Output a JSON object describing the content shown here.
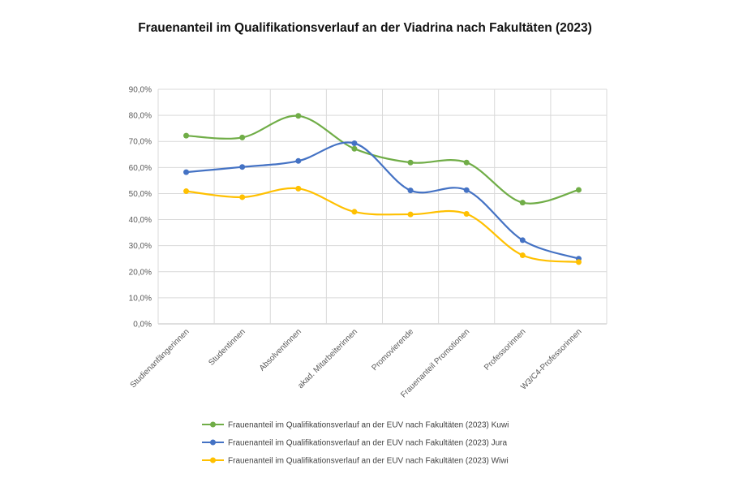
{
  "chart_data": {
    "type": "line",
    "title": "Frauenanteil im Qualifikationsverlauf an der Viadrina nach Fakultäten (2023)",
    "categories": [
      "Studienanfängerinnen",
      "Studentinnen",
      "Absolventinnen",
      "akad. Mitarbeiterinnen",
      "Promovierende",
      "Frauenanteil Promotionen",
      "Professorinnen",
      "W3/C4-Professorinnen"
    ],
    "yticks": [
      "0,0%",
      "10,0%",
      "20,0%",
      "30,0%",
      "40,0%",
      "50,0%",
      "60,0%",
      "70,0%",
      "80,0%",
      "90,0%"
    ],
    "ylim": [
      0,
      90
    ],
    "grid": true,
    "smooth": true,
    "legend_position": "bottom",
    "series": [
      {
        "name": "Frauenanteil im Qualifikationsverlauf an der EUV nach Fakultäten (2023) Kuwi",
        "color": "#70AD47",
        "values": [
          72.2,
          71.5,
          79.8,
          67.2,
          61.9,
          61.9,
          46.5,
          51.4
        ]
      },
      {
        "name": "Frauenanteil im Qualifikationsverlauf an der EUV nach Fakultäten (2023) Jura",
        "color": "#4472C4",
        "values": [
          58.2,
          60.2,
          62.5,
          69.3,
          51.2,
          51.3,
          32.1,
          25.0
        ]
      },
      {
        "name": "Frauenanteil im Qualifikationsverlauf an der EUV nach Fakultäten (2023) Wiwi",
        "color": "#FFC000",
        "values": [
          50.9,
          48.6,
          51.9,
          43.0,
          42.0,
          42.2,
          26.3,
          23.7
        ]
      }
    ]
  }
}
